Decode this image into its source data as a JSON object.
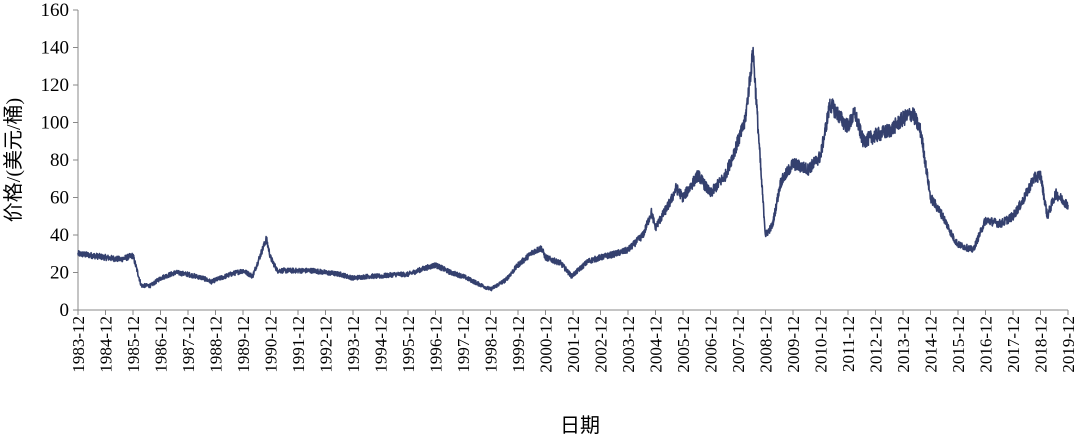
{
  "chart_data": {
    "type": "line",
    "title": "",
    "xlabel": "日期",
    "ylabel": "价格/(美元/桶)",
    "ylim": [
      0,
      160
    ],
    "yticks": [
      0,
      20,
      40,
      60,
      80,
      100,
      120,
      140,
      160
    ],
    "xticks": [
      "1983-12",
      "1984-12",
      "1985-12",
      "1986-12",
      "1987-12",
      "1988-12",
      "1989-12",
      "1990-12",
      "1991-12",
      "1992-12",
      "1993-12",
      "1994-12",
      "1995-12",
      "1996-12",
      "1997-12",
      "1998-12",
      "1999-12",
      "2000-12",
      "2001-12",
      "2002-12",
      "2003-12",
      "2004-12",
      "2005-12",
      "2006-12",
      "2007-12",
      "2008-12",
      "2009-12",
      "2010-12",
      "2011-12",
      "2012-12",
      "2013-12",
      "2014-12",
      "2015-12",
      "2016-12",
      "2017-12",
      "2018-12",
      "2019-12"
    ],
    "grid": false,
    "legend": "none",
    "series": [
      {
        "color": "#34406e",
        "x": [
          1983.95,
          1984.5,
          1984.95,
          1985.5,
          1985.95,
          1986.25,
          1986.6,
          1986.95,
          1987.5,
          1987.95,
          1988.5,
          1988.8,
          1988.95,
          1989.5,
          1989.95,
          1990.3,
          1990.6,
          1990.8,
          1990.95,
          1991.2,
          1991.5,
          1991.95,
          1992.5,
          1992.95,
          1993.5,
          1993.95,
          1994.5,
          1994.95,
          1995.5,
          1995.95,
          1996.5,
          1996.95,
          1997.5,
          1997.95,
          1998.5,
          1998.95,
          1999.5,
          1999.95,
          2000.5,
          2000.8,
          2000.95,
          2001.5,
          2001.9,
          2002.2,
          2002.5,
          2002.95,
          2003.5,
          2003.95,
          2004.5,
          2004.8,
          2004.95,
          2005.5,
          2005.7,
          2005.95,
          2006.5,
          2006.95,
          2007.5,
          2007.95,
          2008.2,
          2008.5,
          2008.8,
          2008.95,
          2009.2,
          2009.5,
          2009.95,
          2010.5,
          2010.95,
          2011.3,
          2011.8,
          2011.95,
          2012.2,
          2012.5,
          2012.95,
          2013.5,
          2013.95,
          2014.3,
          2014.6,
          2014.95,
          2015.4,
          2015.8,
          2015.95,
          2016.5,
          2016.95,
          2017.5,
          2017.95,
          2018.3,
          2018.7,
          2018.95,
          2019.2,
          2019.5,
          2019.95
        ],
        "y": [
          30,
          29,
          28,
          27,
          29,
          13,
          13,
          17,
          20,
          19,
          17,
          15,
          16,
          19,
          21,
          18,
          30,
          38,
          28,
          21,
          21,
          21,
          21,
          20,
          19,
          17,
          18,
          18,
          19,
          19,
          22,
          24,
          20,
          18,
          14,
          11,
          16,
          24,
          31,
          33,
          28,
          25,
          18,
          22,
          26,
          28,
          30,
          32,
          40,
          52,
          44,
          58,
          65,
          60,
          72,
          62,
          72,
          90,
          100,
          138,
          70,
          40,
          45,
          68,
          78,
          75,
          82,
          110,
          100,
          98,
          105,
          90,
          93,
          96,
          102,
          105,
          95,
          60,
          50,
          38,
          35,
          32,
          48,
          46,
          50,
          58,
          70,
          72,
          50,
          62,
          56
        ]
      }
    ]
  }
}
